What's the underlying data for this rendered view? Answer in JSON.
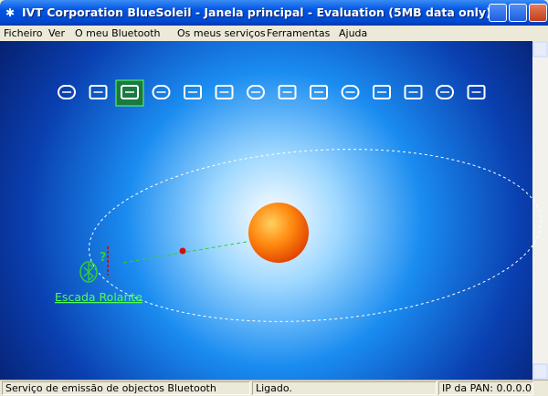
{
  "window": {
    "title": "IVT Corporation BlueSoleil - Janela principal - Evaluation (5MB data only)"
  },
  "menu": [
    "Ficheiro",
    "Ver",
    "O meu Bluetooth",
    "Os meus serviços",
    "Ferramentas",
    "Ajuda"
  ],
  "devices": [
    {
      "label": "Escada Rolante"
    }
  ],
  "status_bar": [
    "Serviço de emissão de objectos Bluetooth",
    "Ligado.",
    "IP da PAN: 0.0.0.0"
  ]
}
